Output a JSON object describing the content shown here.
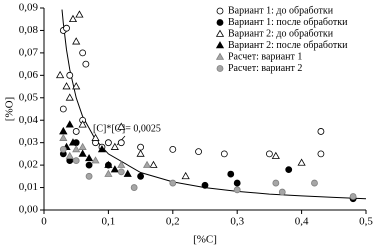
{
  "chart_data": {
    "type": "scatter",
    "x_label": "[%C]",
    "y_label": "[%O]",
    "annotation": "[C]*[O]= 0,0025",
    "xlim": [
      0,
      0.5
    ],
    "xticks": [
      0,
      {
        "value": 0.1,
        "label": "0,1"
      },
      {
        "value": 0.2,
        "label": "0,2"
      },
      {
        "value": 0.3,
        "label": "0,3"
      },
      {
        "value": 0.4,
        "label": "0,4"
      },
      {
        "value": 0.5,
        "label": "0,5"
      }
    ],
    "ylim": [
      0,
      0.09
    ],
    "yticks": [
      {
        "value": 0,
        "label": "0,00"
      },
      {
        "value": 0.01,
        "label": "0,01"
      },
      {
        "value": 0.02,
        "label": "0,02"
      },
      {
        "value": 0.03,
        "label": "0,03"
      },
      {
        "value": 0.04,
        "label": "0,04"
      },
      {
        "value": 0.05,
        "label": "0,05"
      },
      {
        "value": 0.06,
        "label": "0,06"
      },
      {
        "value": 0.07,
        "label": "0,07"
      },
      {
        "value": 0.08,
        "label": "0,08"
      },
      {
        "value": 0.09,
        "label": "0,09"
      }
    ],
    "legend": "top-right",
    "series": [
      {
        "name": "Вариант 1: до обработки",
        "marker": "circle",
        "color": "#ffffff",
        "x": [
          0.03,
          0.035,
          0.06,
          0.065,
          0.04,
          0.03,
          0.05,
          0.08,
          0.1,
          0.12,
          0.15,
          0.2,
          0.24,
          0.28,
          0.35,
          0.43,
          0.43,
          0.06,
          0.09
        ],
        "values": [
          0.08,
          0.081,
          0.07,
          0.065,
          0.06,
          0.045,
          0.035,
          0.03,
          0.03,
          0.03,
          0.028,
          0.027,
          0.026,
          0.025,
          0.025,
          0.035,
          0.025,
          0.04,
          0.028
        ]
      },
      {
        "name": "Вариант 1: после обработки",
        "marker": "circle",
        "color": "#000000",
        "x": [
          0.03,
          0.05,
          0.07,
          0.1,
          0.15,
          0.25,
          0.29,
          0.3,
          0.38,
          0.48,
          0.04
        ],
        "values": [
          0.025,
          0.03,
          0.02,
          0.02,
          0.015,
          0.011,
          0.016,
          0.012,
          0.018,
          0.005,
          0.022
        ]
      },
      {
        "name": "Вариант 2: до обработки",
        "marker": "triangle",
        "color": "#ffffff",
        "x": [
          0.055,
          0.045,
          0.05,
          0.025,
          0.035,
          0.04,
          0.05,
          0.06,
          0.08,
          0.12,
          0.11,
          0.15,
          0.17,
          0.22,
          0.36,
          0.4,
          0.03
        ],
        "values": [
          0.087,
          0.085,
          0.075,
          0.06,
          0.055,
          0.05,
          0.055,
          0.038,
          0.032,
          0.037,
          0.028,
          0.025,
          0.02,
          0.015,
          0.024,
          0.021,
          0.035
        ]
      },
      {
        "name": "Вариант 2: после обработки",
        "marker": "triangle",
        "color": "#000000",
        "x": [
          0.03,
          0.04,
          0.045,
          0.06,
          0.07,
          0.09,
          0.1,
          0.11,
          0.13,
          0.035
        ],
        "values": [
          0.035,
          0.038,
          0.03,
          0.025,
          0.023,
          0.027,
          0.02,
          0.018,
          0.016,
          0.028
        ]
      },
      {
        "name": "Расчет: вариант 1",
        "marker": "triangle",
        "color": "#a6a6a6",
        "x": [
          0.03,
          0.05,
          0.06,
          0.08,
          0.12,
          0.16,
          0.04,
          0.1
        ],
        "values": [
          0.032,
          0.027,
          0.028,
          0.022,
          0.02,
          0.02,
          0.024,
          0.016
        ]
      },
      {
        "name": "Расчет: вариант 2",
        "marker": "circle",
        "color": "#a6a6a6",
        "x": [
          0.03,
          0.05,
          0.07,
          0.12,
          0.14,
          0.2,
          0.3,
          0.36,
          0.42,
          0.37,
          0.48
        ],
        "values": [
          0.027,
          0.022,
          0.015,
          0.017,
          0.01,
          0.012,
          0.009,
          0.012,
          0.012,
          0.008,
          0.006
        ]
      }
    ],
    "curve": {
      "color": "#000000",
      "x": [
        0.028,
        0.03,
        0.035,
        0.04,
        0.05,
        0.06,
        0.08,
        0.1,
        0.15,
        0.2,
        0.25,
        0.3,
        0.35,
        0.4,
        0.45,
        0.5
      ],
      "values": [
        0.0893,
        0.0833,
        0.0714,
        0.0625,
        0.05,
        0.0417,
        0.0313,
        0.025,
        0.0167,
        0.0125,
        0.01,
        0.0083,
        0.0071,
        0.0063,
        0.0056,
        0.005
      ]
    }
  }
}
